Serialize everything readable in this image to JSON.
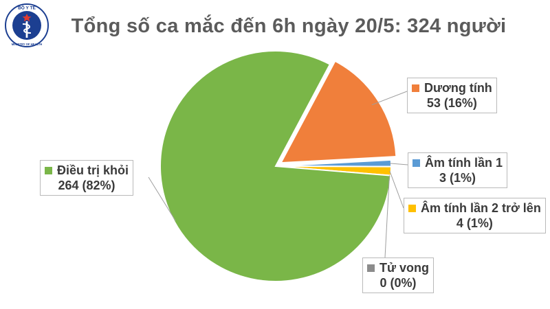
{
  "title": "Tổng số ca mắc đến 6h ngày 20/5: 324 người",
  "logo": {
    "icon": "ministry-of-health-emblem-icon",
    "top_text": "BỘ Y TẾ",
    "bottom_text": "MINISTRY OF HEALTH",
    "color": "#1c3f91"
  },
  "chart_data": {
    "type": "pie",
    "title": "Tổng số ca mắc đến 6h ngày 20/5: 324 người",
    "total": 324,
    "legend": "callouts",
    "slices": [
      {
        "label": "Dương tính",
        "value": 53,
        "percent_label": "53 (16%)",
        "color": "#f07f3b",
        "exploded": true
      },
      {
        "label": "Âm tính lần 1",
        "value": 3,
        "percent_label": "3 (1%)",
        "color": "#5b9bd5",
        "exploded": false
      },
      {
        "label": "Âm tính lần 2 trở lên",
        "value": 4,
        "percent_label": "4 (1%)",
        "color": "#ffc000",
        "exploded": false
      },
      {
        "label": "Tử vong",
        "value": 0,
        "percent_label": "0 (0%)",
        "color": "#8c8c8c",
        "exploded": false
      },
      {
        "label": "Điều trị khỏi",
        "value": 264,
        "percent_label": "264 (82%)",
        "color": "#7ab648",
        "exploded": false
      }
    ]
  }
}
